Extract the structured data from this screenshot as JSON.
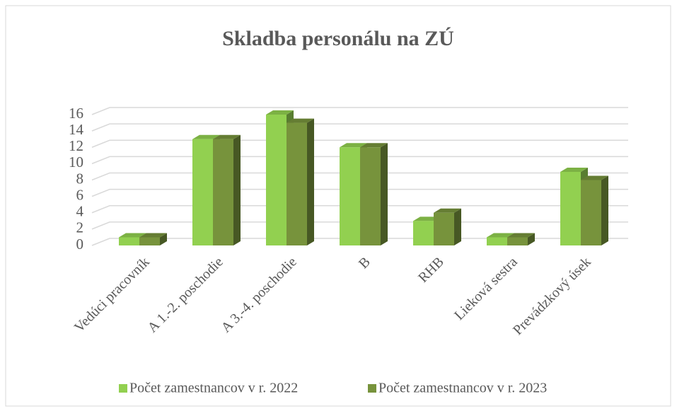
{
  "chart_data": {
    "type": "bar3d",
    "title": "Skladba personálu na ZÚ",
    "categories": [
      "Vedúci pracovník",
      "A 1.-2. poschodie",
      "A 3.-4. poschodie",
      "B",
      "RHB",
      "Lieková sestra",
      "Prevádzkový úsek"
    ],
    "series": [
      {
        "name": "Počet zamestnancov v r. 2022",
        "color": "#92d050",
        "values": [
          1,
          13,
          16,
          12,
          3,
          1,
          9
        ]
      },
      {
        "name": "Počet zamestnancov v r. 2023",
        "color": "#77933c",
        "values": [
          1,
          13,
          15,
          12,
          4,
          1,
          8
        ]
      }
    ],
    "ylim": [
      0,
      16
    ],
    "yticks": [
      0,
      2,
      4,
      6,
      8,
      10,
      12,
      14,
      16
    ],
    "grid": true,
    "legend": "bottom"
  }
}
